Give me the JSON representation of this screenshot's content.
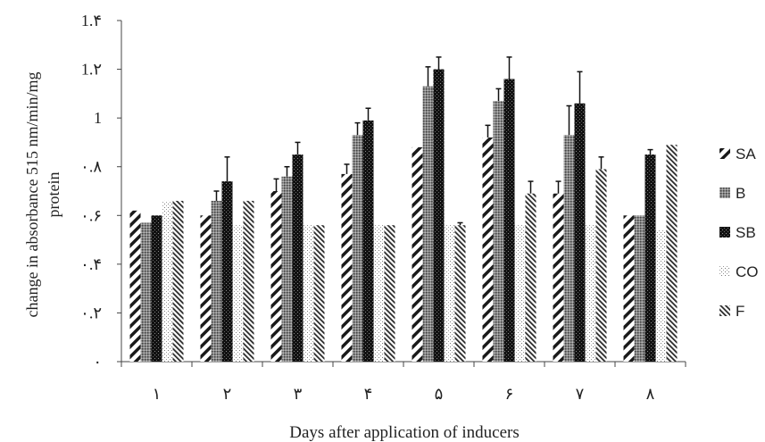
{
  "chart_data": {
    "type": "bar",
    "xlabel": "Days after application of inducers",
    "ylabel_lines": [
      "change in absorbance 515 nm/min/mg",
      "protein"
    ],
    "ylim": [
      0,
      1.4
    ],
    "y_ticks": [
      {
        "value": 0,
        "label": "۰"
      },
      {
        "value": 0.2,
        "label": "۰.۲"
      },
      {
        "value": 0.4,
        "label": "۰.۴"
      },
      {
        "value": 0.6,
        "label": "۰.۶"
      },
      {
        "value": 0.8,
        "label": "۰.۸"
      },
      {
        "value": 1.0,
        "label": "1"
      },
      {
        "value": 1.2,
        "label": "1.۲"
      },
      {
        "value": 1.4,
        "label": "1.۴"
      }
    ],
    "categories": [
      "۱",
      "۲",
      "۳",
      "۴",
      "۵",
      "۶",
      "۷",
      "۸"
    ],
    "grid": false,
    "legend_position": "right",
    "series": [
      {
        "name": "SA",
        "pattern": "diag-wide",
        "values": [
          0.62,
          0.6,
          0.7,
          0.77,
          0.88,
          0.92,
          0.69,
          0.6
        ],
        "errors": [
          0,
          0,
          0.05,
          0.04,
          0,
          0.05,
          0.05,
          0
        ]
      },
      {
        "name": "B",
        "pattern": "grid-gray",
        "values": [
          0.57,
          0.66,
          0.76,
          0.93,
          1.13,
          1.07,
          0.93,
          0.6
        ],
        "errors": [
          0,
          0.04,
          0.04,
          0.05,
          0.08,
          0.05,
          0.12,
          0
        ]
      },
      {
        "name": "SB",
        "pattern": "dark-dots",
        "values": [
          0.6,
          0.74,
          0.85,
          0.99,
          1.2,
          1.16,
          1.06,
          0.85
        ],
        "errors": [
          0,
          0.1,
          0.05,
          0.05,
          0.05,
          0.09,
          0.13,
          0.02
        ]
      },
      {
        "name": "CO",
        "pattern": "light-dots",
        "values": [
          0.66,
          0.56,
          0.56,
          0.56,
          0.56,
          0.56,
          0.56,
          0.54
        ],
        "errors": [
          0,
          0,
          0,
          0,
          0,
          0,
          0,
          0
        ]
      },
      {
        "name": "F",
        "pattern": "diag-dense",
        "values": [
          0.66,
          0.66,
          0.56,
          0.56,
          0.56,
          0.69,
          0.79,
          0.89
        ],
        "errors": [
          0,
          0,
          0,
          0,
          0.01,
          0.05,
          0.05,
          0
        ]
      }
    ]
  }
}
